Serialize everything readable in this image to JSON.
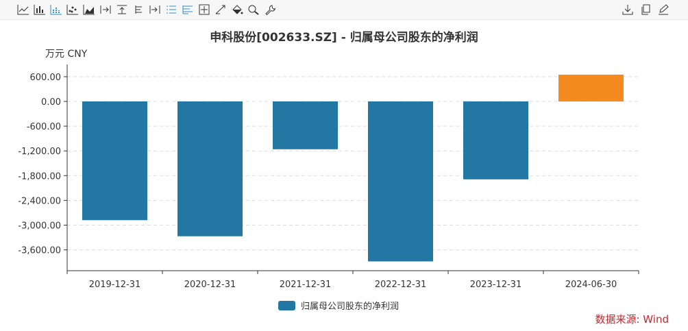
{
  "toolbar": {
    "left_icons": [
      "line-chart-icon",
      "bar-chart-icon",
      "stacked-bar-icon",
      "scatter-icon",
      "area-chart-icon",
      "step-icon",
      "bar-top-icon",
      "tree-icon",
      "bar-right-icon",
      "list-icon",
      "list-bars-icon",
      "crosshair-icon",
      "trend-icon",
      "fill-icon",
      "zoom-icon",
      "wrench-icon"
    ],
    "right_icons": [
      "download-icon",
      "copy-icon",
      "edit-icon"
    ]
  },
  "title": "申科股份[002633.SZ] - 归属母公司股东的净利润",
  "unit": "万元  CNY",
  "source": "数据来源: Wind",
  "colors": {
    "bar_main": "#2277a3",
    "bar_highlight": "#f58a1f",
    "source_red": "#c0282d"
  },
  "chart_data": {
    "type": "bar",
    "title": "申科股份[002633.SZ] - 归属母公司股东的净利润",
    "ylabel": "万元  CNY",
    "categories": [
      "2019-12-31",
      "2020-12-31",
      "2021-12-31",
      "2022-12-31",
      "2023-12-31",
      "2024-06-30"
    ],
    "series": [
      {
        "name": "归属母公司股东的净利润",
        "values": [
          -2880,
          -3270,
          -1160,
          -3880,
          -1890,
          650
        ]
      }
    ],
    "highlight_index": 5,
    "yticks": [
      "600.00",
      "0.00",
      "-600.00",
      "-1,200.00",
      "-1,800.00",
      "-2,400.00",
      "-3,000.00",
      "-3,600.00"
    ],
    "ytick_values": [
      600,
      0,
      -600,
      -1200,
      -1800,
      -2400,
      -3000,
      -3600
    ],
    "ylim": [
      -4000,
      800
    ],
    "grid": true,
    "legend_position": "bottom"
  }
}
